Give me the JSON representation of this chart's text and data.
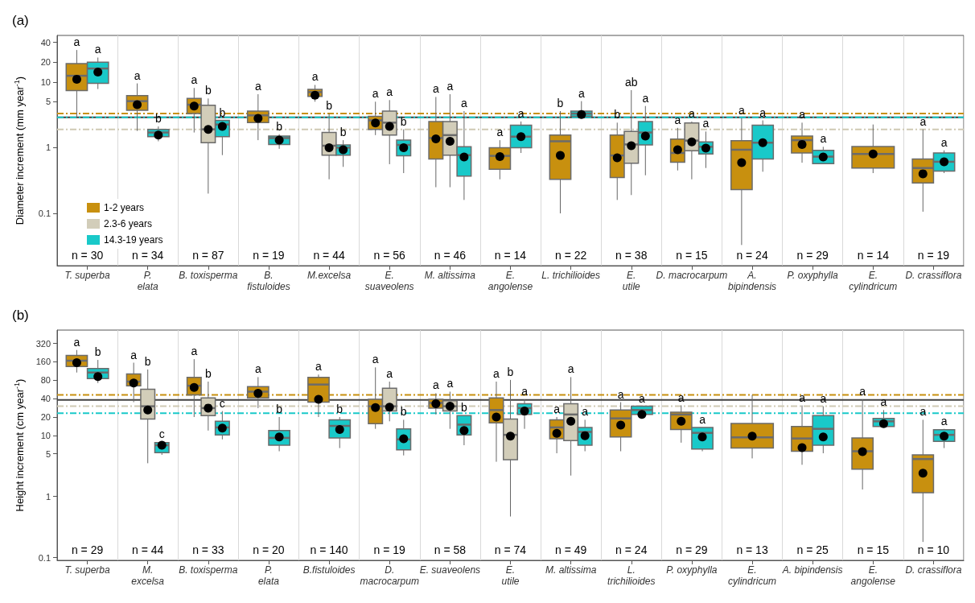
{
  "chart_data": [
    {
      "type": "box",
      "title": "(a)",
      "ylabel": "Diameter increment (mm year$^{-1}$)",
      "log": true,
      "ylim": [
        0.016,
        51
      ],
      "yticks": [
        0.1,
        1,
        5,
        10,
        20,
        40
      ],
      "grid": "x",
      "legend": "bottom left",
      "categories": [
        "T. superba",
        "P.\nelata",
        "B. toxisperma",
        "B.\nfistuloides",
        "M.excelsa",
        "E.\nsuaveolens",
        "M. altissima",
        "E.\nangolense",
        "L. trichilioides",
        "E.\nutile",
        "D. macrocarpum",
        "A.\nbipindensis",
        "P. oxyphylla",
        "E.\ncylindricum",
        "D. crassiflora"
      ],
      "series": [
        {
          "name": "1-2 years",
          "color": "#c8900f",
          "value_labels": [
            "a",
            "a",
            "a",
            "a",
            "a",
            "a",
            "a",
            "a",
            "b",
            "b",
            "a",
            "a",
            "a",
            null,
            "a"
          ],
          "boxes": [
            {
              "low": 2.8,
              "q1": 7.4,
              "median": 12.4,
              "q3": 19,
              "high": 30.6,
              "mean": 11
            },
            {
              "low": 1.8,
              "q1": 3.7,
              "median": 5.1,
              "q3": 6.2,
              "high": 9.5,
              "mean": 4.5
            },
            {
              "low": 1.7,
              "q1": 3.3,
              "median": 4.5,
              "q3": 5.6,
              "high": 8.1,
              "mean": 4.3
            },
            {
              "low": 1.3,
              "q1": 2.4,
              "median": 3.1,
              "q3": 3.6,
              "high": 6.5,
              "mean": 2.8
            },
            {
              "low": 5,
              "q1": 6,
              "median": 7,
              "q3": 7.7,
              "high": 9,
              "mean": 6.3
            },
            {
              "low": 1.55,
              "q1": 1.9,
              "median": 2.6,
              "q3": 3,
              "high": 5,
              "mean": 2.37
            },
            {
              "low": 0.25,
              "q1": 0.67,
              "median": 1.4,
              "q3": 2.5,
              "high": 5.9,
              "mean": 1.36
            },
            {
              "low": 0.33,
              "q1": 0.47,
              "median": 0.75,
              "q3": 1,
              "high": 1.3,
              "mean": 0.73
            },
            {
              "low": 0.1,
              "q1": 0.33,
              "median": 1.25,
              "q3": 1.55,
              "high": 3.6,
              "mean": 0.76
            },
            {
              "low": 0.16,
              "q1": 0.35,
              "median": 0.76,
              "q3": 1.55,
              "high": 2.4,
              "mean": 0.7
            },
            {
              "low": 0.45,
              "q1": 0.6,
              "median": 0.83,
              "q3": 1.35,
              "high": 2,
              "mean": 0.93
            },
            {
              "low": 0.033,
              "q1": 0.23,
              "median": 0.93,
              "q3": 1.28,
              "high": 2.8,
              "mean": 0.59
            },
            {
              "low": 0.59,
              "q1": 0.83,
              "median": 1.3,
              "q3": 1.5,
              "high": 2.4,
              "mean": 1.12
            },
            {
              "low": 0.41,
              "q1": 0.49,
              "median": 0.8,
              "q3": 1.04,
              "high": 2.25,
              "mean": 0.8
            },
            {
              "low": 0.106,
              "q1": 0.29,
              "median": 0.49,
              "q3": 0.67,
              "high": 1.9,
              "mean": 0.4
            }
          ]
        },
        {
          "name": "2.3-6 years",
          "color": "#d2cdb9",
          "value_labels": [
            null,
            null,
            "b",
            null,
            "b",
            "a",
            "a",
            null,
            null,
            "ab",
            "a",
            null,
            null,
            null,
            null
          ],
          "boxes": [
            null,
            null,
            {
              "low": 0.2,
              "q1": 1.19,
              "median": 1.9,
              "q3": 4.4,
              "high": 5.6,
              "mean": 1.9
            },
            null,
            {
              "low": 0.33,
              "q1": 0.77,
              "median": 1.07,
              "q3": 1.7,
              "high": 3.3,
              "mean": 1
            },
            {
              "low": 0.56,
              "q1": 1.55,
              "median": 2.4,
              "q3": 3.6,
              "high": 5.3,
              "mean": 2.1
            },
            {
              "low": 0.25,
              "q1": 0.77,
              "median": 1.55,
              "q3": 2.5,
              "high": 6.5,
              "mean": 1.25
            },
            null,
            null,
            {
              "low": 0.19,
              "q1": 0.58,
              "median": 1.12,
              "q3": 1.76,
              "high": 7.5,
              "mean": 1.07
            },
            {
              "low": 0.33,
              "q1": 0.9,
              "median": 1.28,
              "q3": 2.37,
              "high": 2.5,
              "mean": 1.22
            },
            null,
            null,
            null,
            null
          ]
        },
        {
          "name": "14.3-19 years",
          "color": "#19c9c9",
          "value_labels": [
            "a",
            "b",
            "b",
            "b",
            "b",
            "b",
            "a",
            "a",
            "a",
            "a",
            "a",
            "a",
            "a",
            null,
            "a"
          ],
          "boxes": [
            {
              "low": 7.8,
              "q1": 9.5,
              "median": 16,
              "q3": 20,
              "high": 23.5,
              "mean": 14.1
            },
            {
              "low": 1.25,
              "q1": 1.47,
              "median": 1.7,
              "q3": 1.9,
              "high": 2.1,
              "mean": 1.55
            },
            {
              "low": 0.77,
              "q1": 1.47,
              "median": 2.25,
              "q3": 2.6,
              "high": 2.6,
              "mean": 2.1
            },
            {
              "low": 0.96,
              "q1": 1.12,
              "median": 1.4,
              "q3": 1.5,
              "high": 1.6,
              "mean": 1.3
            },
            {
              "low": 0.51,
              "q1": 0.77,
              "median": 1,
              "q3": 1.1,
              "high": 1.3,
              "mean": 0.93
            },
            {
              "low": 0.41,
              "q1": 0.75,
              "median": 1.1,
              "q3": 1.3,
              "high": 1.9,
              "mean": 1
            },
            {
              "low": 0.16,
              "q1": 0.37,
              "median": 0.77,
              "q3": 1.03,
              "high": 3.6,
              "mean": 0.72
            },
            {
              "low": 0.83,
              "q1": 1,
              "median": 1.47,
              "q3": 2.2,
              "high": 2.5,
              "mean": 1.47
            },
            {
              "low": 2.9,
              "q1": 3,
              "median": 3.3,
              "q3": 3.6,
              "high": 5.1,
              "mean": 3.2
            },
            {
              "low": 0.38,
              "q1": 1.1,
              "median": 1.7,
              "q3": 2.5,
              "high": 4.3,
              "mean": 1.5
            },
            {
              "low": 0.49,
              "q1": 0.8,
              "median": 1.03,
              "q3": 1.22,
              "high": 1.76,
              "mean": 0.98
            },
            {
              "low": 0.43,
              "q1": 0.67,
              "median": 1.19,
              "q3": 2.2,
              "high": 2.6,
              "mean": 1.19
            },
            {
              "low": 0.56,
              "q1": 0.57,
              "median": 0.73,
              "q3": 0.91,
              "high": 1.03,
              "mean": 0.72
            },
            null,
            {
              "low": 0.41,
              "q1": 0.44,
              "median": 0.61,
              "q3": 0.83,
              "high": 0.91,
              "mean": 0.61
            }
          ]
        }
      ],
      "ref_lines": [
        {
          "axis": "y",
          "value": 3.3,
          "color": "#c8900f",
          "line_style": "dashed"
        },
        {
          "axis": "y",
          "value": 2.9,
          "color": "#404040",
          "line_style": "solid"
        },
        {
          "axis": "y",
          "value": 2.9,
          "color": "#19c9c9",
          "line_style": "dashed"
        },
        {
          "axis": "y",
          "value": 1.9,
          "color": "#cfc9b4",
          "line_style": "dashed"
        }
      ],
      "annotations": [
        "n = 30",
        "n = 34",
        "n = 87",
        "n = 19",
        "n = 44",
        "n = 56",
        "n = 46",
        "n = 14",
        "n = 22",
        "n = 38",
        "n = 15",
        "n = 24",
        "n = 29",
        "n = 14",
        "n = 19"
      ]
    },
    {
      "type": "box",
      "title": "(b)",
      "ylabel": "Height increment (cm year$^{-1}$)",
      "log": true,
      "ylim": [
        0.09,
        530
      ],
      "yticks": [
        0.1,
        1,
        5,
        10,
        20,
        40,
        80,
        160,
        320
      ],
      "grid": "x",
      "categories": [
        "T. superba",
        "M.\nexcelsa",
        "B. toxisperma",
        "P.\nelata",
        "B.fistuloides",
        "D.\nmacrocarpum",
        "E. suaveolens",
        "E.\nutile",
        "M. altissima",
        "L.\ntrichilioides",
        "P. oxyphylla",
        "E.\ncylindricum",
        "A. bipindensis",
        "E.\nangolense",
        "D. crassiflora"
      ],
      "series": [
        {
          "color": "#c8900f",
          "value_labels": [
            "a",
            "a",
            "a",
            "a",
            "a",
            "a",
            "a",
            "a",
            "a",
            "a",
            "a",
            null,
            "a",
            "a",
            "a"
          ],
          "boxes": [
            {
              "low": 107,
              "q1": 134,
              "median": 167,
              "q3": 203,
              "high": 250,
              "mean": 155
            },
            {
              "low": 35,
              "q1": 65,
              "median": 76,
              "q3": 101,
              "high": 155,
              "mean": 72
            },
            {
              "low": 20,
              "q1": 46,
              "median": 65,
              "q3": 89,
              "high": 177,
              "mean": 61
            },
            {
              "low": 28,
              "q1": 41,
              "median": 52,
              "q3": 63,
              "high": 90,
              "mean": 49
            },
            {
              "low": 20,
              "q1": 35,
              "median": 68,
              "q3": 89,
              "high": 99,
              "mean": 39
            },
            {
              "low": 12.8,
              "q1": 15.5,
              "median": 30,
              "q3": 39,
              "high": 130,
              "mean": 28.6
            },
            {
              "low": 22,
              "q1": 28,
              "median": 34,
              "q3": 39,
              "high": 49,
              "mean": 33
            },
            {
              "low": 3.7,
              "q1": 16,
              "median": 26,
              "q3": 41,
              "high": 76,
              "mean": 20
            },
            {
              "low": 5.1,
              "q1": 8.8,
              "median": 13.5,
              "q3": 18,
              "high": 20,
              "mean": 10.8
            },
            {
              "low": 5.5,
              "q1": 9.4,
              "median": 19,
              "q3": 26,
              "high": 35,
              "mean": 14.8
            },
            {
              "low": 7.6,
              "q1": 12.5,
              "median": 22,
              "q3": 24,
              "high": 31,
              "mean": 17
            },
            {
              "low": 4.2,
              "q1": 6.2,
              "median": 9.3,
              "q3": 15.7,
              "high": 46,
              "mean": 9.7
            },
            {
              "low": 3.3,
              "q1": 5.5,
              "median": 8.9,
              "q3": 14,
              "high": 31,
              "mean": 6.3
            },
            {
              "low": 1.3,
              "q1": 2.8,
              "median": 5.5,
              "q3": 9.1,
              "high": 39,
              "mean": 5.4
            },
            {
              "low": 0.18,
              "q1": 1.15,
              "median": 4.1,
              "q3": 4.8,
              "high": 18,
              "mean": 2.4
            }
          ]
        },
        {
          "color": "#d2cdb9",
          "value_labels": [
            null,
            "b",
            "b",
            null,
            null,
            "a",
            "a",
            "b",
            "a",
            null,
            null,
            null,
            null,
            null,
            null
          ],
          "boxes": [
            null,
            {
              "low": 3.5,
              "q1": 18.5,
              "median": 30,
              "q3": 57,
              "high": 120,
              "mean": 26
            },
            {
              "low": 12,
              "q1": 21,
              "median": 28,
              "q3": 41,
              "high": 76,
              "mean": 28
            },
            null,
            null,
            {
              "low": 17,
              "q1": 25,
              "median": 30,
              "q3": 59,
              "high": 76,
              "mean": 29
            },
            {
              "low": 12.8,
              "q1": 25,
              "median": 30,
              "q3": 37,
              "high": 52,
              "mean": 30
            },
            {
              "low": 0.47,
              "q1": 4,
              "median": 10.2,
              "q3": 18.5,
              "high": 81,
              "mean": 9.7
            },
            {
              "low": 2.2,
              "q1": 8.2,
              "median": 22,
              "q3": 33,
              "high": 90,
              "mean": 17
            },
            null,
            null,
            null,
            null,
            null,
            null
          ]
        },
        {
          "color": "#19c9c9",
          "value_labels": [
            "b",
            "c",
            "c",
            "b",
            "b",
            "b",
            "b",
            "a",
            "a",
            "a",
            "a",
            null,
            "a",
            "a",
            "a"
          ],
          "boxes": [
            {
              "low": 72,
              "q1": 85,
              "median": 107,
              "q3": 124,
              "high": 172,
              "mean": 92
            },
            {
              "low": 4.8,
              "q1": 5.2,
              "median": 6.9,
              "q3": 7.6,
              "high": 7.7,
              "mean": 6.9
            },
            {
              "low": 8.6,
              "q1": 10.2,
              "median": 13.5,
              "q3": 17,
              "high": 25,
              "mean": 13.2
            },
            {
              "low": 5.5,
              "q1": 6.9,
              "median": 9.1,
              "q3": 12,
              "high": 20,
              "mean": 9.4
            },
            {
              "low": 6.2,
              "q1": 9.1,
              "median": 14.3,
              "q3": 18,
              "high": 20,
              "mean": 12.5
            },
            {
              "low": 4.7,
              "q1": 5.8,
              "median": 8.6,
              "q3": 12.8,
              "high": 18,
              "mean": 8.8
            },
            {
              "low": 6.9,
              "q1": 10.2,
              "median": 15,
              "q3": 21,
              "high": 21,
              "mean": 12
            },
            {
              "low": 12.8,
              "q1": 22,
              "median": 28,
              "q3": 33,
              "high": 39,
              "mean": 25
            },
            {
              "low": 5.5,
              "q1": 6.9,
              "median": 11.4,
              "q3": 13.5,
              "high": 18,
              "mean": 9.9
            },
            {
              "low": 22,
              "q1": 22,
              "median": 26,
              "q3": 30,
              "high": 30,
              "mean": 22
            },
            {
              "low": 5.5,
              "q1": 6,
              "median": 11,
              "q3": 13.5,
              "high": 13.5,
              "mean": 9.4
            },
            null,
            {
              "low": 5.1,
              "q1": 6.9,
              "median": 12.8,
              "q3": 21,
              "high": 30,
              "mean": 9.4
            },
            {
              "low": 13.5,
              "q1": 14,
              "median": 17,
              "q3": 19,
              "high": 26,
              "mean": 15.6
            },
            {
              "low": 6.2,
              "q1": 8,
              "median": 10.2,
              "q3": 12.4,
              "high": 12.8,
              "mean": 9.7
            }
          ]
        }
      ],
      "ref_lines": [
        {
          "axis": "y",
          "value": 46,
          "color": "#c8900f",
          "line_style": "dashed"
        },
        {
          "axis": "y",
          "value": 38,
          "color": "#404040",
          "line_style": "solid"
        },
        {
          "axis": "y",
          "value": 30,
          "color": "#cfc9b4",
          "line_style": "dashed"
        },
        {
          "axis": "y",
          "value": 23,
          "color": "#19c9c9",
          "line_style": "dashed"
        }
      ],
      "annotations": [
        "n = 29",
        "n = 44",
        "n = 33",
        "n = 20",
        "n = 140",
        "n = 19",
        "n = 58",
        "n = 74",
        "n = 49",
        "n = 24",
        "n = 29",
        "n = 13",
        "n = 25",
        "n = 15",
        "n = 10"
      ]
    }
  ]
}
